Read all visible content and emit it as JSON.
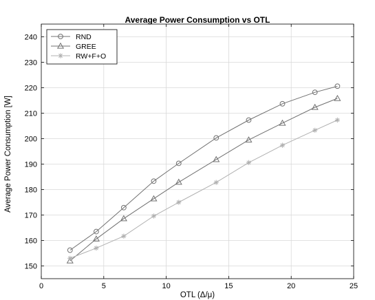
{
  "chart_data": {
    "type": "line",
    "title": "Average Power Consumption vs OTL",
    "xlabel": "OTL (Δ/μ)",
    "ylabel": "Average Power Consumption [W]",
    "xlim": [
      0,
      25
    ],
    "ylim": [
      145,
      245
    ],
    "xticks": [
      0,
      5,
      10,
      15,
      20,
      25
    ],
    "yticks": [
      150,
      160,
      170,
      180,
      190,
      200,
      210,
      220,
      230,
      240
    ],
    "grid": true,
    "legend_position": "top-left",
    "series": [
      {
        "name": "RND",
        "marker": "circle",
        "color": "#707070",
        "x": [
          2.3,
          4.4,
          6.6,
          9.0,
          11.0,
          14.0,
          16.6,
          19.3,
          21.9,
          23.7
        ],
        "y": [
          156.2,
          163.5,
          172.9,
          183.3,
          190.3,
          200.3,
          207.3,
          213.7,
          218.2,
          220.6
        ]
      },
      {
        "name": "GREE",
        "marker": "triangle",
        "color": "#707070",
        "x": [
          2.3,
          4.4,
          6.6,
          9.0,
          11.0,
          14.0,
          16.6,
          19.3,
          21.9,
          23.7
        ],
        "y": [
          152.0,
          160.6,
          168.6,
          176.4,
          182.9,
          191.8,
          199.5,
          206.1,
          212.3,
          215.8
        ]
      },
      {
        "name": "RW+F+O",
        "marker": "asterisk",
        "color": "#b0b0b0",
        "x": [
          2.3,
          4.4,
          6.6,
          9.0,
          11.0,
          14.0,
          16.6,
          19.3,
          21.9,
          23.7
        ],
        "y": [
          153.0,
          157.0,
          161.7,
          169.6,
          175.0,
          182.8,
          190.6,
          197.4,
          203.3,
          207.3
        ]
      }
    ]
  }
}
